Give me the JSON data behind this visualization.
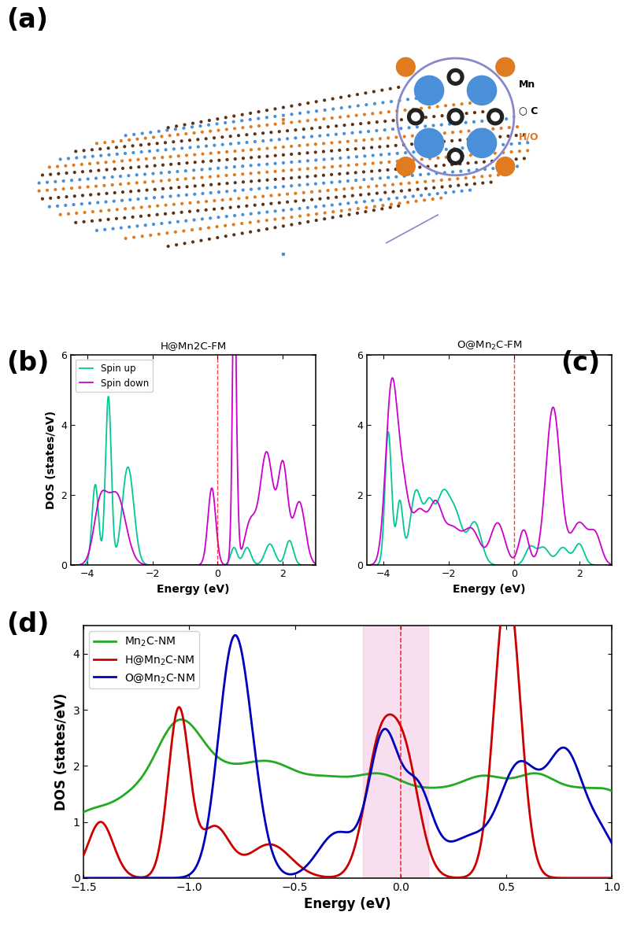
{
  "panel_a_label": "(a)",
  "panel_b_label": "(b)",
  "panel_c_label": "(c)",
  "panel_d_label": "(d)",
  "title_b": "H@Mn2C-FM",
  "title_c": "O@Mn₂C-FM",
  "legend_b_up": "Spin up",
  "legend_b_down": "Spin down",
  "xlabel_b": "Energy (eV)",
  "ylabel_b": "DOS (states/eV)",
  "xlabel_c": "Energy (eV)",
  "xlabel_d": "Energy (eV)",
  "ylabel_d": "DOS (states/eV)",
  "legend_d_1": "Mn₂C-NM",
  "legend_d_2": "H@Mn₂C-NM",
  "legend_d_3": "O@Mn₂C-NM",
  "color_spinup": "#00c896",
  "color_spindown": "#cc00cc",
  "color_green": "#22aa22",
  "color_red": "#cc0000",
  "color_blue": "#0000bb",
  "shade_color": "#f0c0e0",
  "shade_alpha": 0.5,
  "mn_color": "#4a90d9",
  "c_color": "#5c3317",
  "ho_color": "#e07b20",
  "inset_bg": "#f0d8f0",
  "inset_border": "#8888cc"
}
